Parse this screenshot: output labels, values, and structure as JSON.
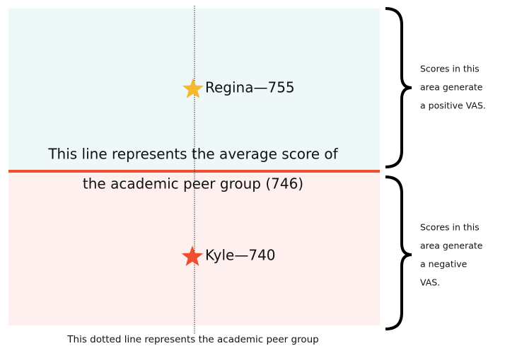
{
  "positive_area": {
    "marker": "Regina—755",
    "note": [
      "Scores in this",
      "area generate",
      "a positive VAS."
    ]
  },
  "negative_area": {
    "marker": "Kyle—740",
    "note": [
      "Scores in this",
      "area generate",
      "a negative",
      "VAS."
    ]
  },
  "average_line": {
    "label": [
      "This line represents the average score of",
      "the academic peer group (746)"
    ]
  },
  "dotted_line": {
    "label": "This dotted line represents the academic peer group"
  }
}
